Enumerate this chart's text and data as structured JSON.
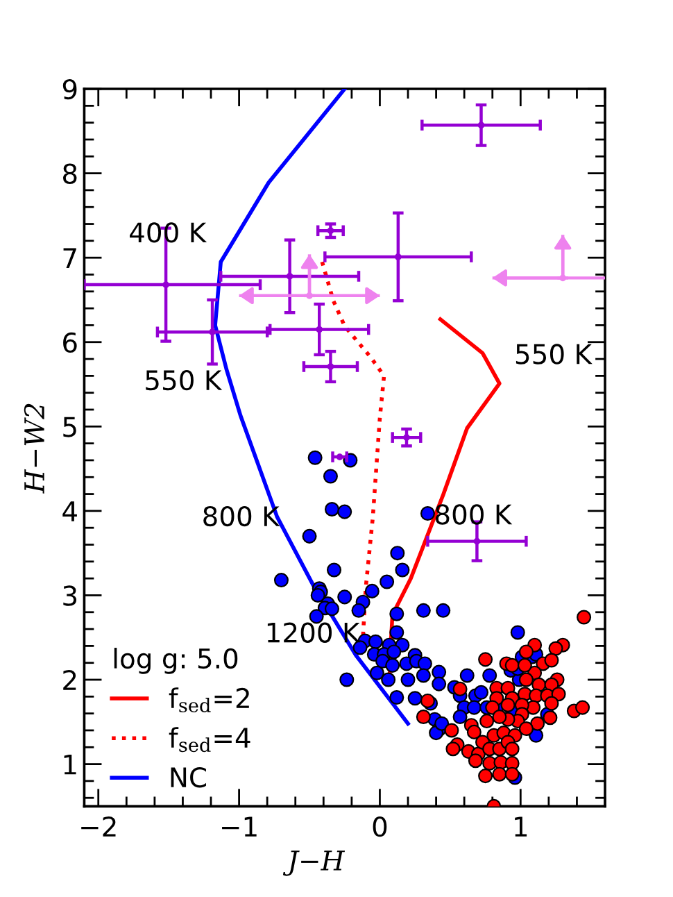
{
  "chart_data": {
    "type": "scatter",
    "xlabel": "J−H",
    "ylabel": "H−W2",
    "xlim": [
      -2.1,
      1.6
    ],
    "ylim": [
      0.5,
      9
    ],
    "xticks": [
      {
        "value": -2,
        "label": "−2"
      },
      {
        "value": -1,
        "label": "−1"
      },
      0,
      1
    ],
    "yticks": [
      1,
      2,
      3,
      4,
      5,
      6,
      7,
      8,
      9
    ],
    "legend": "bottom left",
    "legend_title": "log g: 5.0",
    "annotations": [
      "400 K",
      "550 K",
      "550 K",
      "800 K",
      "800 K",
      "1200 K"
    ],
    "series": [
      {
        "name": "f$_{sed}$=2",
        "type": "line",
        "color": "#ff0000",
        "line_style": "solid",
        "x": [
          0.43,
          0.73,
          0.85,
          0.62,
          0.45,
          0.22,
          0.09,
          0.08,
          0.07
        ],
        "values": [
          6.27,
          5.87,
          5.51,
          4.98,
          4.19,
          3.2,
          2.77,
          2.49,
          2.05
        ]
      },
      {
        "name": "f$_{sed}$=4",
        "type": "line",
        "color": "#ff0000",
        "line_style": "dotted",
        "x": [
          -0.41,
          -0.33,
          -0.25,
          -0.06,
          0.03,
          0.0,
          -0.05,
          -0.1,
          -0.12
        ],
        "values": [
          6.95,
          6.49,
          6.19,
          5.81,
          5.6,
          5.1,
          3.92,
          3.09,
          2.5
        ]
      },
      {
        "name": "NC",
        "type": "line",
        "color": "#0000ff",
        "line_style": "solid",
        "x": [
          -0.25,
          -0.79,
          -1.13,
          -1.17,
          -1.09,
          -0.99,
          -0.73,
          -0.47,
          -0.33,
          -0.17,
          0.2
        ],
        "values": [
          9.0,
          7.89,
          6.95,
          6.2,
          5.68,
          5.13,
          3.93,
          3.11,
          2.73,
          2.29,
          1.48
        ]
      },
      {
        "color": "#9400d3",
        "x": [
          -1.52,
          -1.19,
          -0.64,
          -0.43,
          -0.35,
          -0.35,
          0.13,
          0.72,
          0.19,
          0.69,
          -0.285
        ],
        "values": [
          6.68,
          6.12,
          6.78,
          6.15,
          5.71,
          7.32,
          7.01,
          8.57,
          4.87,
          3.64,
          4.64
        ],
        "errors": [
          0.67,
          0.38,
          0.43,
          0.3,
          0.18,
          0.08,
          0.52,
          0.24,
          0.1,
          0.23,
          null
        ],
        "xerrors": [
          [
            -2.1,
            -0.85
          ],
          0.39,
          0.49,
          0.35,
          0.19,
          0.09,
          0.52,
          0.42,
          0.1,
          0.35,
          0.05
        ]
      },
      {
        "color": "#ee82ee",
        "x": [
          -0.5,
          1.3
        ],
        "values": [
          6.55,
          6.76
        ],
        "errors": [
          [
            6.55,
            7.04
          ],
          [
            6.76,
            7.27
          ]
        ],
        "xerrors": [
          [
            -1.0,
            0.0
          ],
          [
            0.8,
            1.6
          ]
        ]
      },
      {
        "color": "#0000ff",
        "marker": "circle",
        "x": [
          -0.46,
          -0.35,
          -0.34,
          -0.25,
          -0.5,
          -0.325,
          -0.7,
          -0.43,
          -0.42,
          -0.44,
          -0.25,
          -0.37,
          -0.39,
          -0.34,
          -0.45,
          -0.21,
          0.34,
          0.125,
          0.16,
          0.05,
          -0.055,
          -0.12,
          -0.15,
          0.31,
          0.45,
          0.12,
          0.98,
          0.12,
          -0.105,
          -0.03,
          0.066,
          0.16,
          -0.14,
          -0.04,
          0.03,
          0.1,
          0.25,
          0.02,
          0.09,
          0.19,
          0.26,
          0.32,
          0.42,
          -0.02,
          0.06,
          0.2,
          0.31,
          0.42,
          0.12,
          0.25,
          0.36,
          0.39,
          0.42,
          0.4,
          0.44,
          0.53,
          0.62,
          0.57,
          0.6,
          0.57,
          0.68,
          0.72,
          0.67,
          0.78,
          0.76,
          0.83,
          0.99,
          0.94,
          1.11,
          0.96,
          1.01,
          1.08,
          0.93,
          1.19,
          0.98,
          1.11,
          -0.235
        ],
        "values": [
          4.63,
          4.41,
          4.02,
          3.99,
          3.7,
          3.3,
          3.18,
          3.08,
          3.04,
          3.0,
          2.98,
          2.9,
          2.85,
          2.84,
          2.75,
          4.6,
          3.97,
          3.5,
          3.3,
          3.16,
          3.05,
          2.92,
          2.82,
          2.82,
          2.82,
          2.78,
          2.56,
          2.56,
          2.46,
          2.45,
          2.41,
          2.41,
          2.38,
          2.3,
          2.3,
          2.33,
          2.29,
          2.22,
          2.17,
          2.19,
          2.22,
          2.19,
          2.09,
          2.08,
          2.0,
          2.0,
          2.05,
          1.95,
          1.79,
          1.78,
          1.72,
          1.53,
          1.41,
          1.37,
          1.48,
          1.91,
          2.05,
          1.81,
          1.67,
          1.56,
          1.81,
          1.85,
          1.67,
          2.05,
          1.67,
          1.67,
          2.0,
          1.64,
          1.34,
          0.84,
          2.27,
          2.27,
          2.11,
          1.59,
          2.13,
          2.3,
          2.0
        ]
      },
      {
        "color": "#ff0000",
        "marker": "circle",
        "x": [
          1.45,
          1.1,
          1.3,
          1.25,
          1.04,
          0.75,
          0.9,
          0.94,
          1.16,
          1.22,
          1.1,
          1.04,
          1.13,
          1.26,
          1.22,
          0.57,
          0.83,
          0.91,
          0.34,
          0.31,
          0.83,
          0.94,
          1.03,
          1.11,
          1.19,
          1.27,
          1.22,
          1.09,
          1.01,
          0.91,
          0.8,
          1.38,
          1.44,
          1.21,
          1.12,
          1.01,
          0.98,
          0.91,
          0.85,
          0.76,
          0.65,
          0.67,
          0.51,
          0.55,
          0.52,
          0.63,
          0.7,
          0.73,
          0.81,
          0.88,
          0.96,
          1.04,
          0.78,
          0.85,
          0.91,
          0.94,
          0.68,
          0.78,
          0.86,
          0.94,
          0.75,
          0.85,
          0.94,
          0.81,
          1.03
        ],
        "values": [
          2.74,
          2.41,
          2.41,
          2.37,
          2.33,
          2.24,
          2.19,
          2.17,
          2.19,
          2.23,
          2.08,
          2.0,
          1.94,
          2.0,
          1.94,
          1.89,
          1.9,
          1.9,
          1.75,
          1.56,
          1.78,
          1.78,
          1.83,
          1.81,
          1.81,
          1.83,
          1.72,
          1.67,
          1.7,
          1.7,
          1.67,
          1.63,
          1.67,
          1.55,
          1.48,
          1.59,
          1.51,
          1.53,
          1.56,
          1.51,
          1.46,
          1.38,
          1.4,
          1.23,
          1.18,
          1.15,
          1.12,
          1.26,
          1.34,
          1.37,
          1.34,
          1.42,
          1.18,
          1.18,
          1.26,
          1.18,
          1.04,
          1.01,
          1.02,
          1.01,
          0.86,
          0.88,
          0.88,
          0.5,
          2.17
        ]
      }
    ]
  }
}
